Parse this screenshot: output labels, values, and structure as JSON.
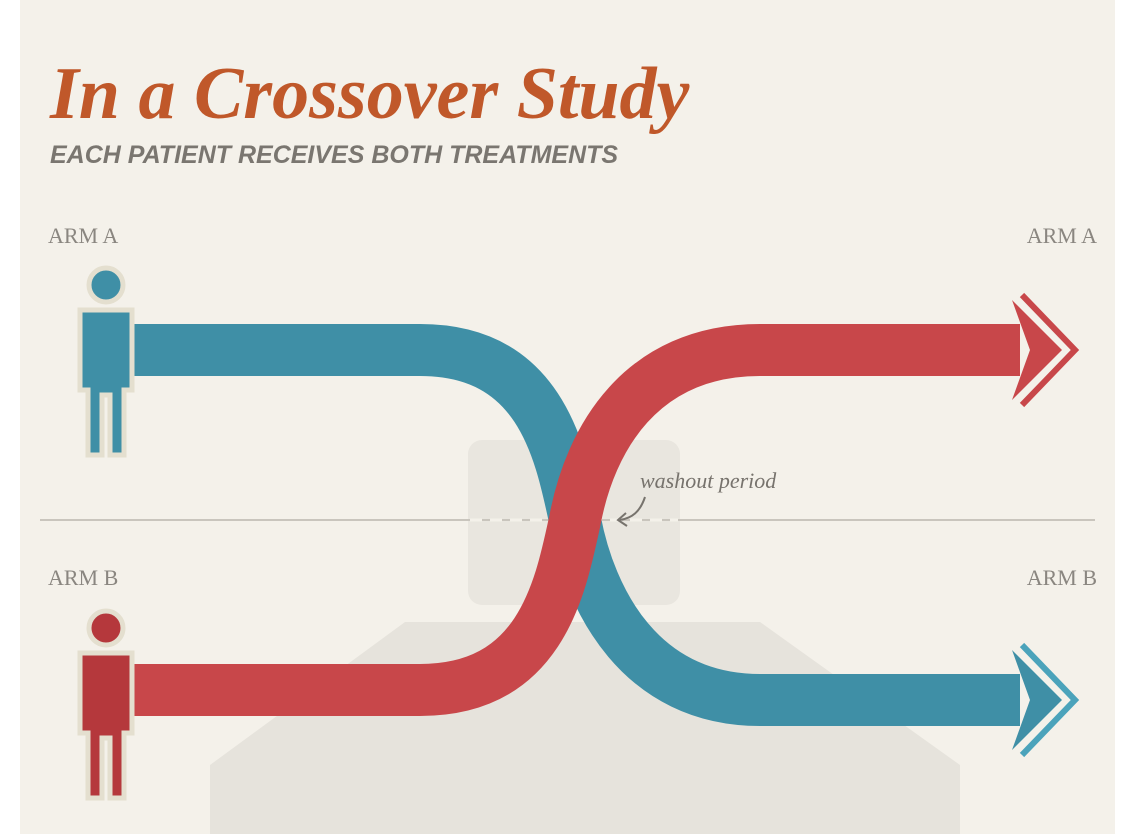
{
  "header": {
    "title": "In a Crossover Study",
    "subtitle": "EACH PATIENT RECEIVES BOTH TREATMENTS"
  },
  "arms": [
    {
      "left_label": "ARM A",
      "right_label": "ARM A"
    },
    {
      "left_label": "ARM B",
      "right_label": "ARM B"
    }
  ],
  "annotation": "washout period"
}
